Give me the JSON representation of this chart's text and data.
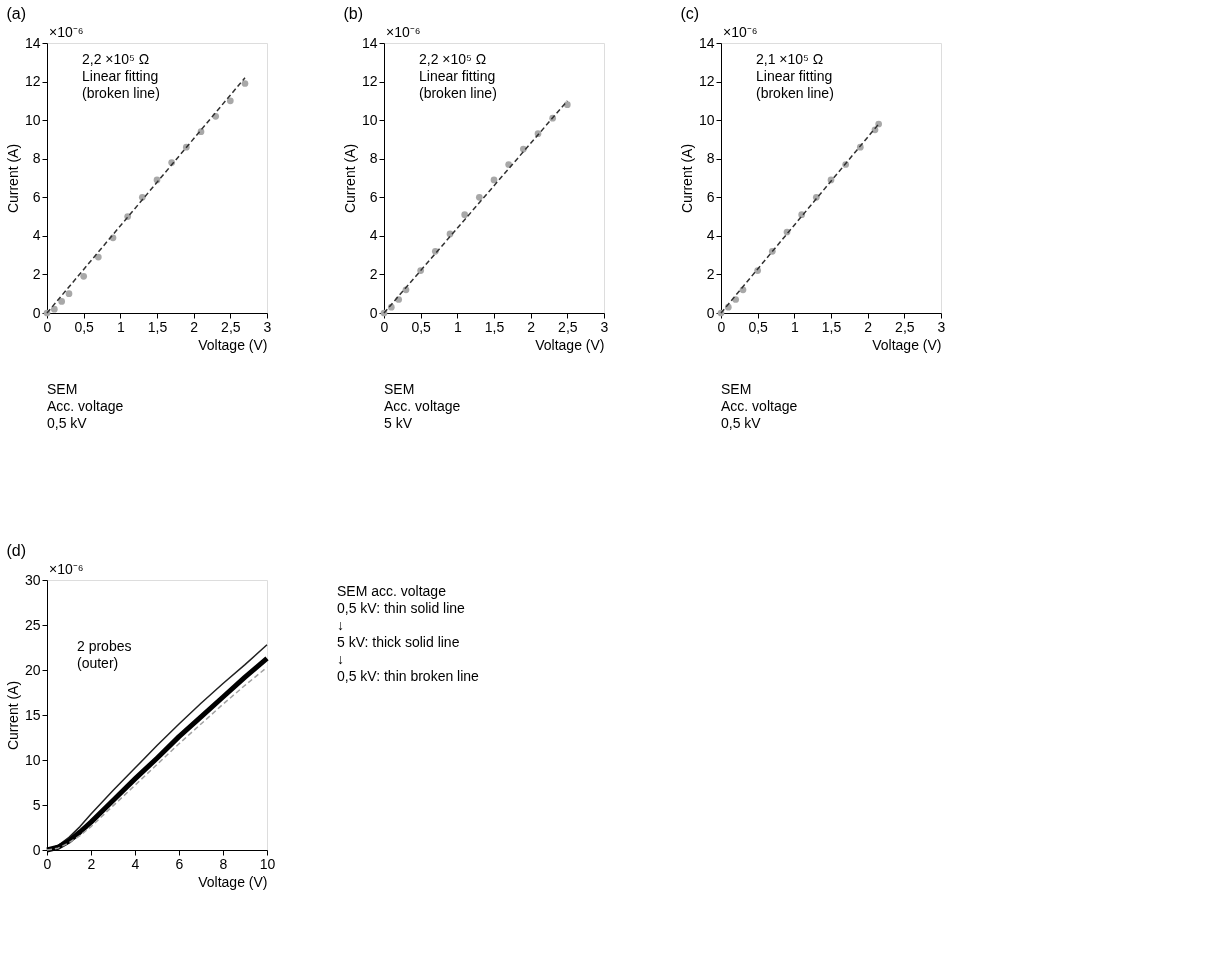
{
  "chart_data": [
    {
      "type": "line",
      "title": "(a)",
      "xlabel": "Voltage (V)",
      "ylabel": "Current (A)",
      "xlim": [
        0,
        3
      ],
      "ylim": [
        0,
        14
      ],
      "xticks": [
        0,
        {
          "value": 0.5,
          "label": "0,5"
        },
        1,
        {
          "value": 1.5,
          "label": "1,5"
        },
        2,
        {
          "value": 2.5,
          "label": "2,5"
        },
        3
      ],
      "yticks": [
        0,
        2,
        4,
        6,
        8,
        10,
        12,
        14
      ],
      "series": [
        {
          "type": "scatter",
          "color": "#a8a8a8",
          "x": [
            0,
            0.1,
            0.2,
            0.3,
            0.5,
            0.7,
            0.9,
            1.1,
            1.3,
            1.5,
            1.7,
            1.9,
            2.1,
            2.3,
            2.5,
            2.7
          ],
          "values": [
            0,
            0.2,
            0.6,
            1.0,
            1.9,
            2.9,
            3.9,
            5.0,
            6.0,
            6.9,
            7.8,
            8.6,
            9.4,
            10.2,
            11.0,
            11.9
          ]
        },
        {
          "type": "line",
          "line_style": "dashed",
          "color": "#303030",
          "x": [
            0,
            2.7
          ],
          "values": [
            0,
            12.2
          ]
        }
      ],
      "annotations": [
        "2,2 ×10⁵ Ω\nLinear fitting\n(broken line)",
        "SEM\nAcc. voltage\n0,5 kV",
        "×10⁻⁶"
      ]
    },
    {
      "type": "line",
      "title": "(b)",
      "xlabel": "Voltage (V)",
      "ylabel": "Current (A)",
      "xlim": [
        0,
        3
      ],
      "ylim": [
        0,
        14
      ],
      "xticks": [
        0,
        {
          "value": 0.5,
          "label": "0,5"
        },
        1,
        {
          "value": 1.5,
          "label": "1,5"
        },
        2,
        {
          "value": 2.5,
          "label": "2,5"
        },
        3
      ],
      "yticks": [
        0,
        2,
        4,
        6,
        8,
        10,
        12,
        14
      ],
      "series": [
        {
          "type": "scatter",
          "color": "#a8a8a8",
          "x": [
            0,
            0.1,
            0.2,
            0.3,
            0.5,
            0.7,
            0.9,
            1.1,
            1.3,
            1.5,
            1.7,
            1.9,
            2.1,
            2.3,
            2.5
          ],
          "values": [
            0,
            0.3,
            0.7,
            1.2,
            2.2,
            3.2,
            4.1,
            5.1,
            6.0,
            6.9,
            7.7,
            8.5,
            9.3,
            10.1,
            10.8
          ]
        },
        {
          "type": "line",
          "line_style": "dashed",
          "color": "#303030",
          "x": [
            0,
            2.5
          ],
          "values": [
            0,
            11.0
          ]
        }
      ],
      "annotations": [
        "2,2 ×10⁵ Ω\nLinear fitting\n(broken line)",
        "SEM\nAcc. voltage\n5 kV",
        "×10⁻⁶"
      ]
    },
    {
      "type": "line",
      "title": "(c)",
      "xlabel": "Voltage (V)",
      "ylabel": "Current (A)",
      "xlim": [
        0,
        3
      ],
      "ylim": [
        0,
        14
      ],
      "xticks": [
        0,
        {
          "value": 0.5,
          "label": "0,5"
        },
        1,
        {
          "value": 1.5,
          "label": "1,5"
        },
        2,
        {
          "value": 2.5,
          "label": "2,5"
        },
        3
      ],
      "yticks": [
        0,
        2,
        4,
        6,
        8,
        10,
        12,
        14
      ],
      "series": [
        {
          "type": "scatter",
          "color": "#a8a8a8",
          "x": [
            0,
            0.1,
            0.2,
            0.3,
            0.5,
            0.7,
            0.9,
            1.1,
            1.3,
            1.5,
            1.7,
            1.9,
            2.1,
            2.15
          ],
          "values": [
            0,
            0.3,
            0.7,
            1.2,
            2.2,
            3.2,
            4.2,
            5.1,
            6.0,
            6.9,
            7.7,
            8.6,
            9.5,
            9.8
          ]
        },
        {
          "type": "line",
          "line_style": "dashed",
          "color": "#303030",
          "x": [
            0,
            2.15
          ],
          "values": [
            0,
            9.8
          ]
        }
      ],
      "annotations": [
        "2,1 ×10⁵ Ω\nLinear fitting\n(broken line)",
        "SEM\nAcc. voltage\n0,5 kV",
        "×10⁻⁶"
      ]
    },
    {
      "type": "line",
      "title": "(d)",
      "xlabel": "Voltage (V)",
      "ylabel": "Current (A)",
      "xlim": [
        0,
        10
      ],
      "ylim": [
        0,
        30
      ],
      "xticks": [
        0,
        2,
        4,
        6,
        8,
        10
      ],
      "yticks": [
        0,
        5,
        10,
        15,
        20,
        25,
        30
      ],
      "series": [
        {
          "color": "#202020",
          "line_style": "solid",
          "x": [
            0,
            0.5,
            1,
            1.5,
            2,
            3,
            4,
            5,
            6,
            7,
            8,
            9,
            10
          ],
          "values": [
            0,
            0.5,
            1.4,
            2.6,
            4.0,
            6.6,
            9.1,
            11.6,
            14.0,
            16.3,
            18.5,
            20.6,
            22.8
          ]
        },
        {
          "color": "#000000",
          "line_style": "solid",
          "x": [
            0,
            0.5,
            1,
            1.5,
            2,
            3,
            4,
            5,
            6,
            7,
            8,
            9,
            10
          ],
          "values": [
            0,
            0.3,
            1.0,
            2.0,
            3.1,
            5.5,
            7.9,
            10.2,
            12.6,
            14.8,
            17.0,
            19.2,
            21.3
          ]
        },
        {
          "color": "#a0a0a0",
          "line_style": "dashed",
          "x": [
            0,
            0.5,
            1,
            1.5,
            2,
            3,
            4,
            5,
            6,
            7,
            8,
            9,
            10
          ],
          "values": [
            0,
            0.2,
            0.8,
            1.6,
            2.6,
            4.9,
            7.2,
            9.5,
            11.8,
            14.0,
            16.2,
            18.3,
            20.3
          ]
        }
      ],
      "annotations": [
        "2 probes\n(outer)",
        "SEM acc. voltage\n0,5 kV: thin solid line\n↓\n5 kV: thick solid line\n↓\n0,5 kV: thin broken line",
        "×10⁻⁶"
      ]
    }
  ]
}
